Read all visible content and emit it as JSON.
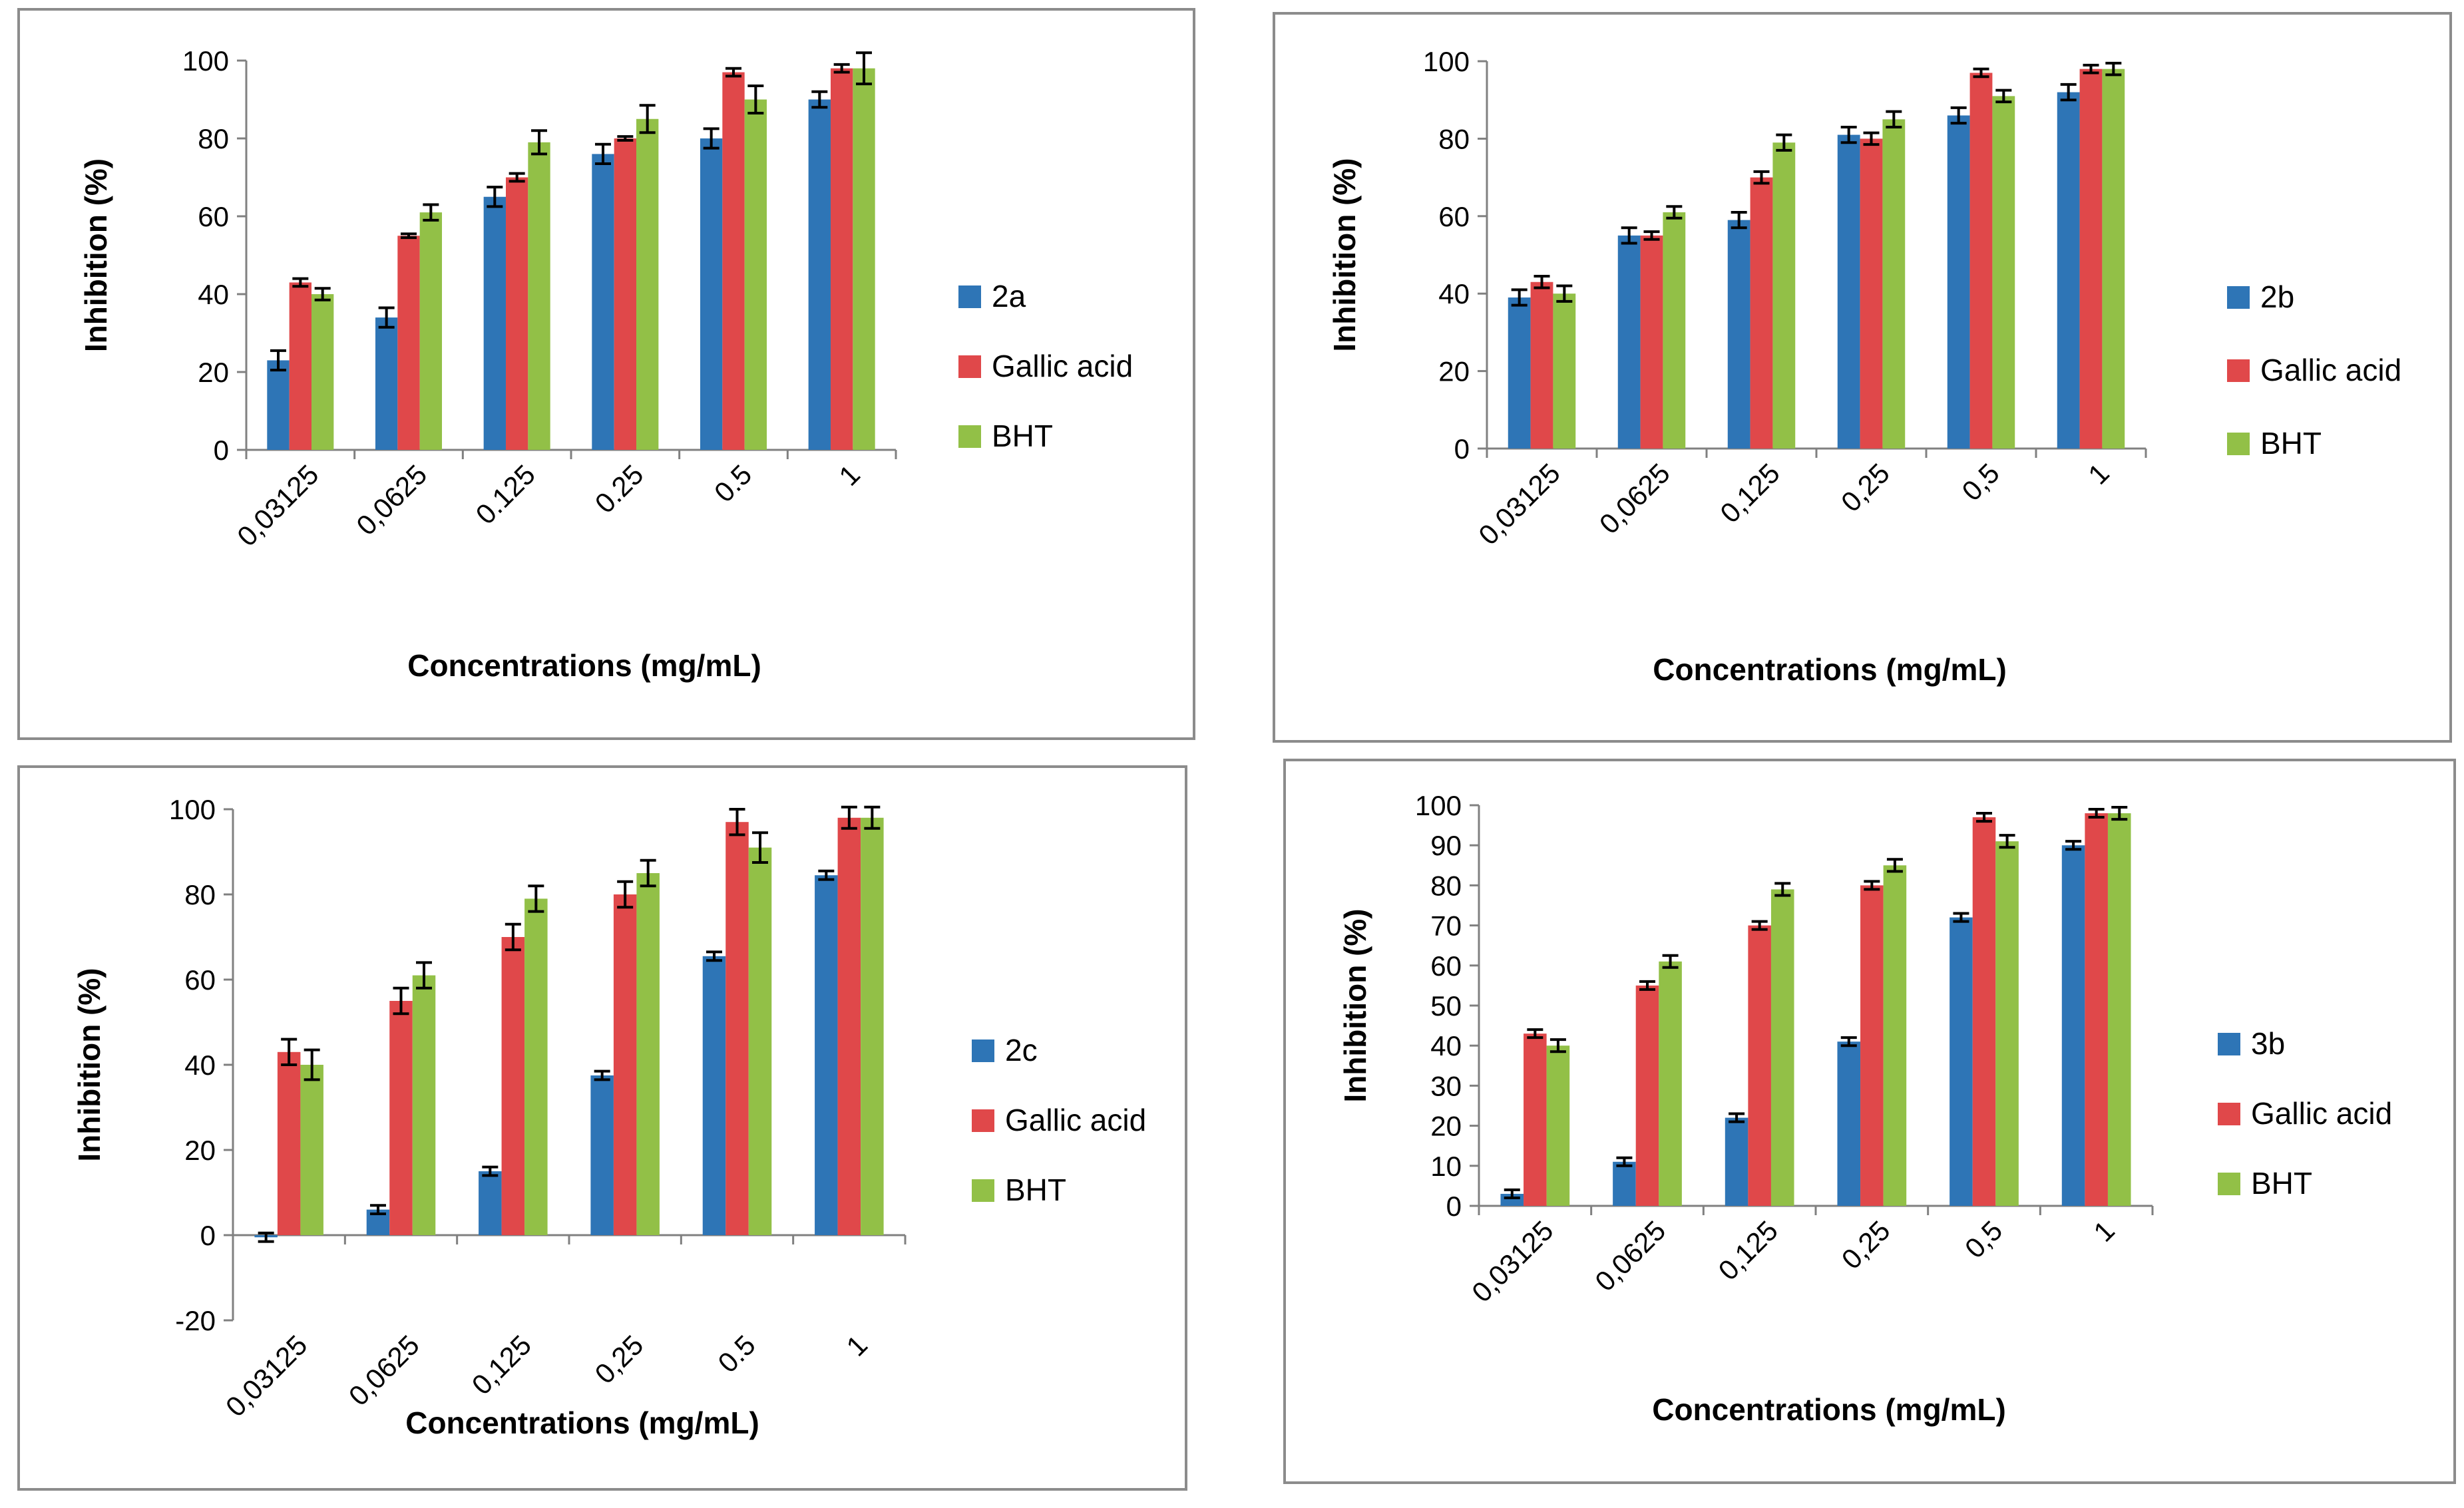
{
  "colors": {
    "blue": "#2e75b6",
    "red": "#e0484a",
    "green": "#92c047",
    "axis": "#808080"
  },
  "chart_data": [
    {
      "type": "bar",
      "title": "",
      "xlabel": "Concentrations (mg/mL)",
      "ylabel": "Inhibition (%)",
      "ylim": [
        0,
        100
      ],
      "yticks": [
        0,
        20,
        40,
        60,
        80,
        100
      ],
      "categories": [
        "0,03125",
        "0,0625",
        "0.125",
        "0.25",
        "0.5",
        "1"
      ],
      "series": [
        {
          "name": "2a",
          "values": [
            23,
            34,
            65,
            76,
            80,
            90
          ],
          "errors": [
            2.5,
            2.5,
            2.5,
            2.5,
            2.5,
            2
          ]
        },
        {
          "name": "Gallic acid",
          "values": [
            43,
            55,
            70,
            80,
            97,
            98
          ],
          "errors": [
            1,
            0.5,
            1,
            0.5,
            1,
            1
          ]
        },
        {
          "name": "BHT",
          "values": [
            40,
            61,
            79,
            85,
            90,
            98
          ],
          "errors": [
            1.5,
            2,
            3,
            3.5,
            3.5,
            4
          ]
        }
      ]
    },
    {
      "type": "bar",
      "title": "",
      "xlabel": "Concentrations (mg/mL)",
      "ylabel": "Inhibition (%)",
      "ylim": [
        0,
        100
      ],
      "yticks": [
        0,
        20,
        40,
        60,
        80,
        100
      ],
      "categories": [
        "0,03125",
        "0,0625",
        "0,125",
        "0,25",
        "0,5",
        "1"
      ],
      "series": [
        {
          "name": "2b",
          "values": [
            39,
            55,
            59,
            81,
            86,
            92
          ],
          "errors": [
            2,
            2,
            2,
            2,
            2,
            2
          ]
        },
        {
          "name": "Gallic acid",
          "values": [
            43,
            55,
            70,
            80,
            97,
            98
          ],
          "errors": [
            1.5,
            1,
            1.5,
            1.5,
            1,
            1
          ]
        },
        {
          "name": "BHT",
          "values": [
            40,
            61,
            79,
            85,
            91,
            98
          ],
          "errors": [
            2,
            1.5,
            2,
            2,
            1.5,
            1.5
          ]
        }
      ]
    },
    {
      "type": "bar",
      "title": "",
      "xlabel": "Concentrations (mg/mL)",
      "ylabel": "Inhibition (%)",
      "ylim": [
        -20,
        100
      ],
      "yticks": [
        -20,
        0,
        20,
        40,
        60,
        80,
        100
      ],
      "categories": [
        "0,03125",
        "0,0625",
        "0,125",
        "0,25",
        "0.5",
        "1"
      ],
      "series": [
        {
          "name": "2c",
          "values": [
            -0.5,
            6,
            15,
            37.5,
            65.5,
            84.5
          ],
          "errors": [
            1,
            1,
            1,
            1,
            1,
            1
          ]
        },
        {
          "name": "Gallic acid",
          "values": [
            43,
            55,
            70,
            80,
            97,
            98
          ],
          "errors": [
            3,
            3,
            3,
            3,
            3,
            2.5
          ]
        },
        {
          "name": "BHT",
          "values": [
            40,
            61,
            79,
            85,
            91,
            98
          ],
          "errors": [
            3.5,
            3,
            3,
            3,
            3.5,
            2.5
          ]
        }
      ]
    },
    {
      "type": "bar",
      "title": "",
      "xlabel": "Concentrations (mg/mL)",
      "ylabel": "Inhibition (%)",
      "ylim": [
        0,
        100
      ],
      "yticks": [
        0,
        10,
        20,
        30,
        40,
        50,
        60,
        70,
        80,
        90,
        100
      ],
      "categories": [
        "0,03125",
        "0,0625",
        "0,125",
        "0,25",
        "0,5",
        "1"
      ],
      "series": [
        {
          "name": "3b",
          "values": [
            3,
            11,
            22,
            41,
            72,
            90
          ],
          "errors": [
            1,
            1,
            1,
            1,
            1,
            1
          ]
        },
        {
          "name": "Gallic acid",
          "values": [
            43,
            55,
            70,
            80,
            97,
            98
          ],
          "errors": [
            1,
            1,
            1,
            1,
            1,
            1
          ]
        },
        {
          "name": "BHT",
          "values": [
            40,
            61,
            79,
            85,
            91,
            98
          ],
          "errors": [
            1.5,
            1.5,
            1.5,
            1.5,
            1.5,
            1.5
          ]
        }
      ]
    }
  ]
}
